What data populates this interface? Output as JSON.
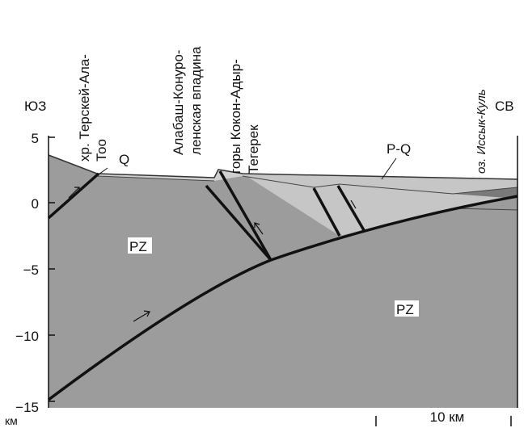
{
  "header": {
    "left": "ЮЗ",
    "right": "СВ"
  },
  "labels": {
    "ridge": [
      "хр. Терскей-Ала-",
      "Тоо"
    ],
    "basin": [
      "Алабаш-Конуро-",
      "ленская впадина"
    ],
    "mountains": [
      "горы Кокон-Адыр-",
      "Тегерек"
    ],
    "lake": "оз. Иссык-Куль"
  },
  "units": {
    "q": "Q",
    "pq": "P-Q",
    "pz_left": "PZ",
    "pz_right": "PZ"
  },
  "axis": {
    "ticks": [
      "5",
      "0",
      "−5",
      "−10",
      "−15"
    ],
    "unit": "км"
  },
  "scale": {
    "label": "10 км"
  }
}
